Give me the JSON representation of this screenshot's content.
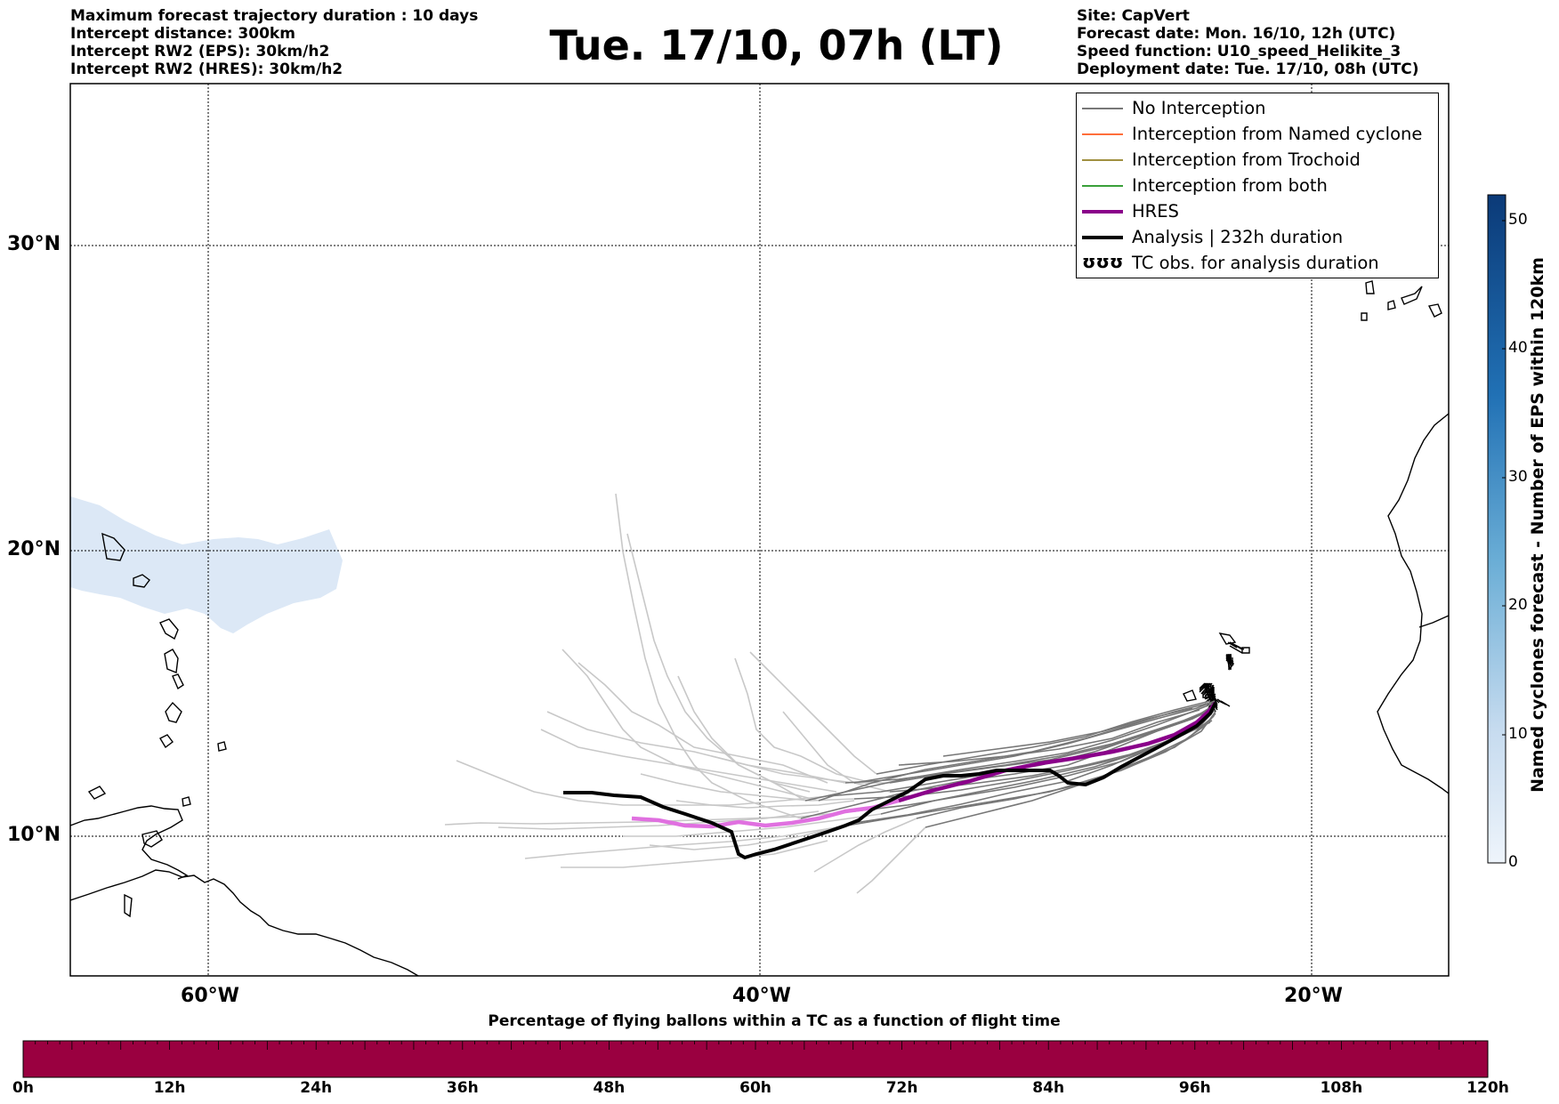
{
  "header_left": [
    "Maximum forecast trajectory duration : 10 days",
    "Intercept distance: 300km",
    "Intercept RW2 (EPS):  30km/h2",
    "Intercept RW2 (HRES): 30km/h2"
  ],
  "title": "Tue. 17/10, 07h (LT)",
  "header_right": [
    "Site: CapVert",
    "Forecast date: Mon. 16/10, 12h (UTC)",
    "Speed function: U10_speed_Helikite_3",
    "Deployment date: Tue. 17/10, 08h (UTC)"
  ],
  "map": {
    "lat_labels": [
      "30°N",
      "20°N",
      "10°N"
    ],
    "lon_labels": [
      "60°W",
      "40°W",
      "20°W"
    ],
    "extent": {
      "lon_min": -65,
      "lon_max": -15,
      "lat_min": 5.4,
      "lat_max": 35.3
    },
    "colors": {
      "no_interception": "#777777",
      "ensemble_light": "#c8c8c8",
      "named_cyclone": "#ff6e3a",
      "trochoid": "#a09040",
      "both": "#3aa03a",
      "hres": "#8a008a",
      "hres_light": "#e070e0",
      "analysis": "#000000",
      "cyclone_zone": "#dce8f6",
      "coast": "#000000"
    }
  },
  "legend": {
    "items": [
      {
        "label": "No Interception",
        "color": "#777777",
        "style": "thin"
      },
      {
        "label": "Interception from Named cyclone",
        "color": "#ff6e3a",
        "style": "thin"
      },
      {
        "label": "Interception from Trochoid",
        "color": "#a09040",
        "style": "thin"
      },
      {
        "label": "Interception from both",
        "color": "#3aa03a",
        "style": "thin"
      },
      {
        "label": "HRES",
        "color": "#8a008a",
        "style": "thick"
      },
      {
        "label": "Analysis | 232h duration",
        "color": "#000000",
        "style": "thick"
      },
      {
        "label": "TC obs. for analysis duration",
        "color": "#000000",
        "style": "symbol",
        "symbol": "ʊʊʊ"
      }
    ]
  },
  "right_colorbar": {
    "label": "Named cyclones forecast - Number of EPS within 120km",
    "ticks": [
      "0",
      "10",
      "20",
      "30",
      "40",
      "50"
    ],
    "min": 0,
    "max": 52,
    "color_low": "#eef4fb",
    "color_high": "#0b3a78"
  },
  "bottom_colorbar": {
    "title": "Percentage of flying ballons within a TC as a function of flight time",
    "ticks": [
      "0h",
      "12h",
      "24h",
      "36h",
      "48h",
      "60h",
      "72h",
      "84h",
      "96h",
      "108h",
      "120h"
    ],
    "fill_color": "#9a0040"
  }
}
